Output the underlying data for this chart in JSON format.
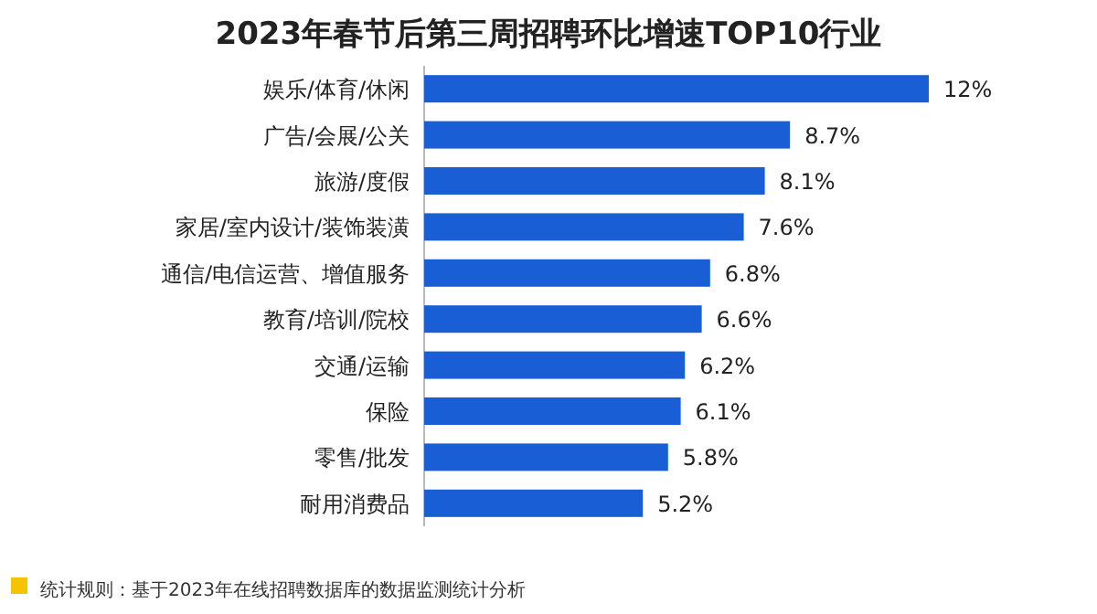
{
  "chart_data": {
    "type": "bar",
    "orientation": "horizontal",
    "title": "2023年春节后第三周招聘环比增速TOP10行业",
    "categories": [
      "娱乐/体育/休闲",
      "广告/会展/公关",
      "旅游/度假",
      "家居/室内设计/装饰装潢",
      "通信/电信运营、增值服务",
      "教育/培训/院校",
      "交通/运输",
      "保险",
      "零售/批发",
      "耐用消费品"
    ],
    "values": [
      12,
      8.7,
      8.1,
      7.6,
      6.8,
      6.6,
      6.2,
      6.1,
      5.8,
      5.2
    ],
    "value_labels": [
      "12%",
      "8.7%",
      "8.1%",
      "7.6%",
      "6.8%",
      "6.6%",
      "6.2%",
      "6.1%",
      "5.8%",
      "5.2%"
    ],
    "color": "#1a5ed6",
    "annotations": [
      "统计规则：基于2023年在线招聘数据库的数据监测统计分析"
    ]
  }
}
